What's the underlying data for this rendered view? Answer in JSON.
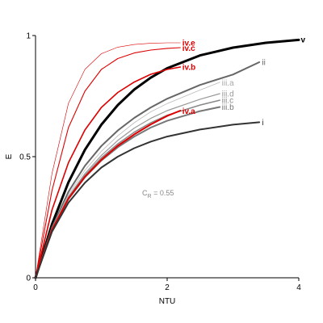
{
  "chart_data": {
    "type": "line",
    "xlabel": "NTU",
    "ylabel": "E",
    "xlim": [
      0,
      4
    ],
    "ylim": [
      0,
      1
    ],
    "xticks": [
      {
        "value": 0,
        "label": "0"
      },
      {
        "value": 2,
        "label": "2"
      },
      {
        "value": 4,
        "label": "4"
      }
    ],
    "yticks": [
      {
        "value": 0,
        "label": "0"
      },
      {
        "value": 0.5,
        "label": "0.5"
      },
      {
        "value": 1,
        "label": "1"
      }
    ],
    "grid": false,
    "annotation": {
      "main": "C",
      "sub": "R",
      "rest": " = 0.55",
      "x": 1.62,
      "y": 0.34
    },
    "series": [
      {
        "name": "v",
        "color": "#000000",
        "weight": 3.0,
        "x": [
          0,
          0.25,
          0.5,
          0.75,
          1,
          1.25,
          1.5,
          1.75,
          2,
          2.5,
          3,
          3.5,
          4
        ],
        "y": [
          0,
          0.221,
          0.394,
          0.528,
          0.632,
          0.713,
          0.777,
          0.826,
          0.865,
          0.918,
          0.95,
          0.97,
          0.982
        ]
      },
      {
        "name": "ii",
        "color": "#666666",
        "weight": 2.0,
        "x": [
          0,
          0.25,
          0.5,
          0.75,
          1,
          1.25,
          1.5,
          1.75,
          2,
          2.5,
          3,
          3.4
        ],
        "y": [
          0,
          0.207,
          0.355,
          0.462,
          0.544,
          0.608,
          0.66,
          0.703,
          0.739,
          0.796,
          0.839,
          0.89
        ]
      },
      {
        "name": "iii.a",
        "color": "#bbbbbb",
        "weight": 0.8,
        "x": [
          0,
          0.25,
          0.5,
          0.75,
          1,
          1.25,
          1.5,
          1.75,
          2,
          2.5,
          2.8
        ],
        "y": [
          0,
          0.203,
          0.344,
          0.444,
          0.522,
          0.586,
          0.64,
          0.685,
          0.719,
          0.775,
          0.807
        ]
      },
      {
        "name": "iii.d",
        "color": "#999999",
        "weight": 1.2,
        "x": [
          0,
          0.25,
          0.5,
          0.75,
          1,
          1.25,
          1.5,
          1.75,
          2,
          2.5,
          2.8
        ],
        "y": [
          0,
          0.2,
          0.335,
          0.43,
          0.505,
          0.567,
          0.618,
          0.658,
          0.69,
          0.737,
          0.76
        ]
      },
      {
        "name": "iii.c",
        "color": "#888888",
        "weight": 1.5,
        "x": [
          0,
          0.25,
          0.5,
          0.75,
          1,
          1.25,
          1.5,
          1.75,
          2,
          2.5,
          2.8
        ],
        "y": [
          0,
          0.198,
          0.33,
          0.423,
          0.495,
          0.553,
          0.601,
          0.64,
          0.671,
          0.713,
          0.733
        ]
      },
      {
        "name": "iii.b",
        "color": "#777777",
        "weight": 2.0,
        "x": [
          0,
          0.25,
          0.5,
          0.75,
          1,
          1.25,
          1.5,
          1.75,
          2,
          2.5,
          2.8
        ],
        "y": [
          0,
          0.196,
          0.325,
          0.415,
          0.484,
          0.539,
          0.583,
          0.62,
          0.648,
          0.688,
          0.705
        ]
      },
      {
        "name": "iv.a",
        "color": "#dd0000",
        "weight": 2.0,
        "x": [
          0,
          0.25,
          0.5,
          0.75,
          1,
          1.25,
          1.5,
          1.75,
          2,
          2.2
        ],
        "y": [
          0,
          0.198,
          0.327,
          0.417,
          0.487,
          0.545,
          0.592,
          0.633,
          0.668,
          0.69
        ]
      },
      {
        "name": "iv.b",
        "color": "#dd0000",
        "weight": 1.6,
        "x": [
          0,
          0.25,
          0.5,
          0.75,
          1,
          1.25,
          1.5,
          1.75,
          2,
          2.2
        ],
        "y": [
          0,
          0.28,
          0.475,
          0.61,
          0.703,
          0.765,
          0.808,
          0.84,
          0.86,
          0.87
        ]
      },
      {
        "name": "iv.c",
        "color": "#dd0000",
        "weight": 1.1,
        "x": [
          0,
          0.25,
          0.5,
          0.75,
          1,
          1.25,
          1.5,
          1.75,
          2,
          2.2
        ],
        "y": [
          0,
          0.36,
          0.62,
          0.77,
          0.86,
          0.905,
          0.928,
          0.94,
          0.947,
          0.95
        ]
      },
      {
        "name": "iv.e",
        "color": "#dd0000",
        "weight": 0.6,
        "x": [
          0,
          0.25,
          0.5,
          0.75,
          1,
          1.25,
          1.5,
          1.75,
          2,
          2.2
        ],
        "y": [
          0,
          0.43,
          0.72,
          0.86,
          0.925,
          0.952,
          0.963,
          0.968,
          0.97,
          0.97
        ]
      },
      {
        "name": "i",
        "color": "#333333",
        "weight": 2.0,
        "x": [
          0,
          0.25,
          0.5,
          0.75,
          1,
          1.25,
          1.5,
          1.75,
          2,
          2.5,
          3,
          3.4
        ],
        "y": [
          0,
          0.19,
          0.31,
          0.392,
          0.455,
          0.5,
          0.535,
          0.562,
          0.583,
          0.612,
          0.632,
          0.642
        ]
      }
    ],
    "labels": [
      {
        "series": "v",
        "text": "v",
        "color": "#000000",
        "weight": "bold",
        "x": 4.03,
        "y": 0.984
      },
      {
        "series": "ii",
        "text": "ii",
        "color": "#666666",
        "weight": "normal",
        "x": 3.44,
        "y": 0.89
      },
      {
        "series": "iii.a",
        "text": "iii.a",
        "color": "#aaaaaa",
        "weight": "normal",
        "x": 2.83,
        "y": 0.805
      },
      {
        "series": "iii.d",
        "text": "iii.d",
        "color": "#999999",
        "weight": "normal",
        "x": 2.83,
        "y": 0.76
      },
      {
        "series": "iii.c",
        "text": "iii.c",
        "color": "#888888",
        "weight": "normal",
        "x": 2.83,
        "y": 0.733
      },
      {
        "series": "iii.b",
        "text": "iii.b",
        "color": "#777777",
        "weight": "normal",
        "x": 2.83,
        "y": 0.705
      },
      {
        "series": "iv.a",
        "text": "iv.a",
        "color": "#dd0000",
        "weight": "bold",
        "x": 2.23,
        "y": 0.688
      },
      {
        "series": "iv.b",
        "text": "iv.b",
        "color": "#dd0000",
        "weight": "bold",
        "x": 2.23,
        "y": 0.87
      },
      {
        "series": "iv.c",
        "text": "iv.c",
        "color": "#dd0000",
        "weight": "bold",
        "x": 2.23,
        "y": 0.948
      },
      {
        "series": "iv.e",
        "text": "iv.e",
        "color": "#dd0000",
        "weight": "bold",
        "x": 2.23,
        "y": 0.97
      },
      {
        "series": "i",
        "text": "i",
        "color": "#333333",
        "weight": "normal",
        "x": 3.44,
        "y": 0.642
      }
    ]
  }
}
